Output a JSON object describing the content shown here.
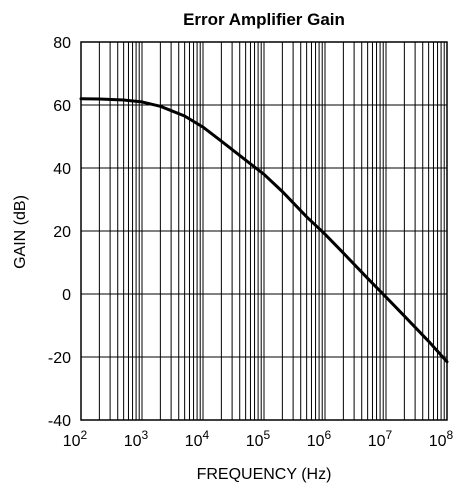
{
  "chart_data": {
    "type": "line",
    "title": "Error Amplifier Gain",
    "xlabel": "FREQUENCY (Hz)",
    "ylabel": "GAIN (dB)",
    "x_scale": "log",
    "xlim": [
      100,
      100000000
    ],
    "ylim": [
      -40,
      80
    ],
    "grid": true,
    "x_ticks": [
      {
        "base": "10",
        "exp": "2"
      },
      {
        "base": "10",
        "exp": "3"
      },
      {
        "base": "10",
        "exp": "4"
      },
      {
        "base": "10",
        "exp": "5"
      },
      {
        "base": "10",
        "exp": "6"
      },
      {
        "base": "10",
        "exp": "7"
      },
      {
        "base": "10",
        "exp": "8"
      }
    ],
    "y_ticks": [
      "80",
      "60",
      "40",
      "20",
      "0",
      "-20",
      "-40"
    ],
    "series": [
      {
        "x": [
          100,
          200,
          500,
          1000,
          2000,
          5000,
          10000,
          20000,
          50000,
          100000,
          200000,
          500000,
          1000000,
          2000000,
          5000000,
          10000000,
          20000000,
          50000000,
          100000000
        ],
        "y": [
          62,
          61.9,
          61.6,
          61,
          59.6,
          56.5,
          53,
          48.5,
          42.5,
          38,
          32.5,
          24.5,
          19,
          13,
          5,
          -1,
          -7,
          -15,
          -21.5
        ]
      }
    ]
  }
}
